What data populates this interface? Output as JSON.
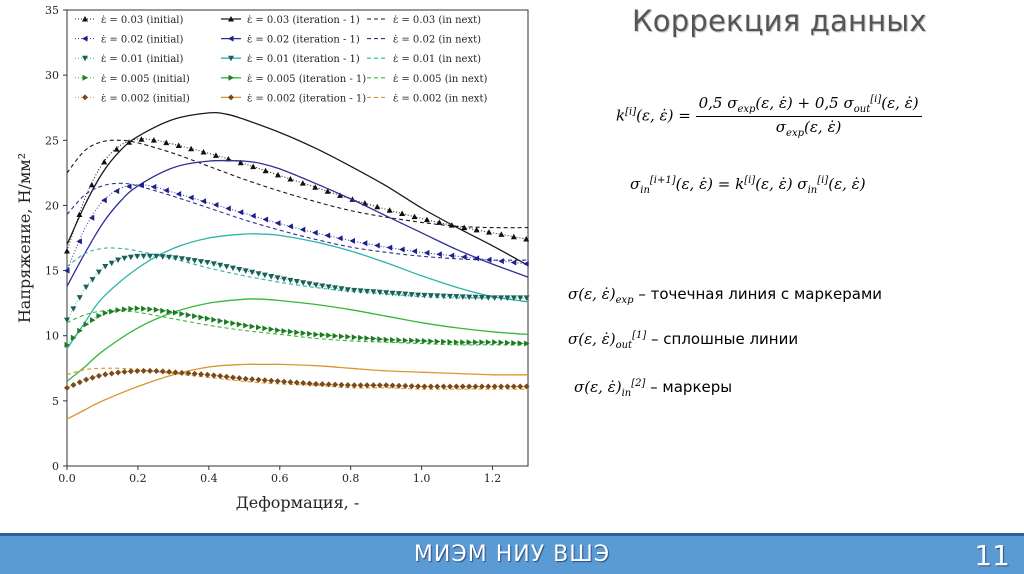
{
  "slide": {
    "title": "Коррекция данных",
    "footer_text": "МИЭМ НИУ ВШЭ",
    "page_number": "11"
  },
  "formulas": {
    "k_lhs": "k",
    "k_sup": "[i]",
    "k_args": "(ε, ε̇) =",
    "k_num": "0,5 σ",
    "k_num_sub1": "exp",
    "k_num_mid": "(ε, ε̇) + 0,5 σ",
    "k_num_sub2": "out",
    "k_num_sup2": "[i]",
    "k_num_end": "(ε, ε̇)",
    "k_den": "σ",
    "k_den_sub": "exp",
    "k_den_end": "(ε, ε̇)",
    "s_lhs": "σ",
    "s_lhs_sub": "in",
    "s_lhs_sup": "[i+1]",
    "s_mid": "(ε, ε̇) = k",
    "s_mid_sup": "[i]",
    "s_mid2": "(ε, ε̇) σ",
    "s_rhs_sub": "in",
    "s_rhs_sup": "[i]",
    "s_end": "(ε, ε̇)"
  },
  "legend_notes": [
    {
      "sym": "σ(ε, ε̇)",
      "sub": "exp",
      "sup": "",
      "text": " – точечная линия с маркерами"
    },
    {
      "sym": "σ(ε, ε̇)",
      "sub": "out",
      "sup": "[1]",
      "text": " – сплошные линии"
    },
    {
      "sym": "σ(ε, ε̇)",
      "sub": "in",
      "sup": "[2]",
      "text": "  – маркеры"
    }
  ],
  "chart_data": {
    "type": "line",
    "xlabel": "Деформация, -",
    "ylabel": "Напряжение, Н/мм²",
    "xlim": [
      0.0,
      1.3
    ],
    "ylim": [
      0,
      35
    ],
    "xticks": [
      "0.0",
      "0.2",
      "0.4",
      "0.6",
      "0.8",
      "1.0",
      "1.2"
    ],
    "yticks": [
      "0",
      "5",
      "10",
      "15",
      "20",
      "25",
      "30",
      "35"
    ],
    "grid": false,
    "legend_position": "top",
    "colors": {
      "0.03": "#1a1a1a",
      "0.02": "#2f2f9a",
      "0.01": "#2ab5a8",
      "0.005": "#35b83a",
      "0.002": "#d9962e"
    },
    "marker_colors": {
      "0.03": "#111111",
      "0.02": "#1f1f8a",
      "0.01": "#1d5e56",
      "0.005": "#1f7a24",
      "0.002": "#7a4a1a"
    },
    "legend": [
      [
        "ε̇ = 0.03 (initial)",
        "ε̇ = 0.03 (iteration - 1)",
        "ε̇ = 0.03 (in next)"
      ],
      [
        "ε̇ = 0.02 (initial)",
        "ε̇ = 0.02 (iteration - 1)",
        "ε̇ = 0.02 (in next)"
      ],
      [
        "ε̇ = 0.01 (initial)",
        "ε̇ = 0.01 (iteration - 1)",
        "ε̇ = 0.01 (in next)"
      ],
      [
        "ε̇ = 0.005 (initial)",
        "ε̇ = 0.005 (iteration - 1)",
        "ε̇ = 0.005 (in next)"
      ],
      [
        "ε̇ = 0.002 (initial)",
        "ε̇ = 0.002 (iteration - 1)",
        "ε̇ = 0.002 (in next)"
      ]
    ],
    "series": [
      {
        "rate": "0.03",
        "kind": "solid",
        "x": [
          0.0,
          0.05,
          0.1,
          0.15,
          0.2,
          0.3,
          0.4,
          0.45,
          0.5,
          0.6,
          0.7,
          0.8,
          0.9,
          1.0,
          1.1,
          1.2,
          1.3
        ],
        "y": [
          17.0,
          20.0,
          22.5,
          24.2,
          25.3,
          26.6,
          27.1,
          27.0,
          26.6,
          25.6,
          24.4,
          23.0,
          21.5,
          19.8,
          18.3,
          16.9,
          15.4
        ]
      },
      {
        "rate": "0.03",
        "kind": "dashed",
        "x": [
          0.0,
          0.05,
          0.1,
          0.15,
          0.2,
          0.3,
          0.4,
          0.5,
          0.6,
          0.7,
          0.8,
          0.9,
          1.0,
          1.1,
          1.2,
          1.3
        ],
        "y": [
          22.5,
          24.2,
          24.9,
          25.0,
          24.8,
          24.0,
          23.0,
          22.0,
          21.1,
          20.3,
          19.6,
          19.1,
          18.7,
          18.4,
          18.3,
          18.3
        ]
      },
      {
        "rate": "0.03",
        "kind": "markers",
        "x": [
          0.0,
          0.05,
          0.1,
          0.15,
          0.2,
          0.25,
          0.3,
          0.4,
          0.5,
          0.6,
          0.7,
          0.8,
          0.9,
          1.0,
          1.1,
          1.2,
          1.3
        ],
        "y": [
          16.5,
          20.5,
          23.2,
          24.6,
          25.1,
          25.0,
          24.7,
          24.0,
          23.2,
          22.3,
          21.4,
          20.5,
          19.7,
          19.0,
          18.4,
          17.9,
          17.4
        ]
      },
      {
        "rate": "0.02",
        "kind": "solid",
        "x": [
          0.0,
          0.05,
          0.1,
          0.15,
          0.2,
          0.3,
          0.4,
          0.5,
          0.55,
          0.6,
          0.7,
          0.8,
          0.9,
          1.0,
          1.1,
          1.2,
          1.3
        ],
        "y": [
          13.8,
          16.3,
          18.6,
          20.3,
          21.5,
          22.9,
          23.4,
          23.4,
          23.2,
          22.8,
          21.7,
          20.5,
          19.2,
          17.9,
          16.6,
          15.5,
          14.5
        ]
      },
      {
        "rate": "0.02",
        "kind": "dashed",
        "x": [
          0.0,
          0.05,
          0.1,
          0.15,
          0.2,
          0.3,
          0.4,
          0.5,
          0.6,
          0.7,
          0.8,
          0.9,
          1.0,
          1.1,
          1.2,
          1.3
        ],
        "y": [
          19.3,
          20.8,
          21.5,
          21.7,
          21.5,
          20.7,
          19.8,
          18.9,
          18.1,
          17.4,
          16.8,
          16.4,
          16.1,
          15.9,
          15.8,
          15.8
        ]
      },
      {
        "rate": "0.02",
        "kind": "markers",
        "x": [
          0.0,
          0.05,
          0.1,
          0.15,
          0.2,
          0.25,
          0.3,
          0.4,
          0.5,
          0.6,
          0.7,
          0.8,
          0.9,
          1.0,
          1.1,
          1.2,
          1.3
        ],
        "y": [
          15.0,
          18.2,
          20.3,
          21.3,
          21.6,
          21.4,
          21.0,
          20.2,
          19.4,
          18.6,
          17.9,
          17.3,
          16.8,
          16.4,
          16.1,
          15.8,
          15.5
        ]
      },
      {
        "rate": "0.01",
        "kind": "solid",
        "x": [
          0.0,
          0.05,
          0.1,
          0.2,
          0.3,
          0.4,
          0.5,
          0.55,
          0.6,
          0.7,
          0.8,
          0.9,
          1.0,
          1.1,
          1.2,
          1.3
        ],
        "y": [
          9.0,
          11.0,
          12.9,
          15.2,
          16.7,
          17.5,
          17.8,
          17.8,
          17.7,
          17.2,
          16.5,
          15.6,
          14.6,
          13.7,
          13.0,
          12.6
        ]
      },
      {
        "rate": "0.01",
        "kind": "dashed",
        "x": [
          0.0,
          0.05,
          0.1,
          0.15,
          0.2,
          0.3,
          0.4,
          0.5,
          0.6,
          0.7,
          0.8,
          0.9,
          1.0,
          1.1,
          1.2,
          1.3
        ],
        "y": [
          15.3,
          16.3,
          16.7,
          16.7,
          16.5,
          15.9,
          15.2,
          14.6,
          14.1,
          13.7,
          13.4,
          13.2,
          13.0,
          12.9,
          12.9,
          12.9
        ]
      },
      {
        "rate": "0.01",
        "kind": "markers",
        "x": [
          0.0,
          0.05,
          0.1,
          0.15,
          0.2,
          0.25,
          0.3,
          0.4,
          0.5,
          0.6,
          0.7,
          0.8,
          0.9,
          1.0,
          1.1,
          1.2,
          1.3
        ],
        "y": [
          11.2,
          13.6,
          15.2,
          15.9,
          16.1,
          16.1,
          16.0,
          15.6,
          15.0,
          14.4,
          13.9,
          13.5,
          13.3,
          13.1,
          13.0,
          12.9,
          12.9
        ]
      },
      {
        "rate": "0.005",
        "kind": "solid",
        "x": [
          0.0,
          0.05,
          0.1,
          0.2,
          0.3,
          0.4,
          0.5,
          0.55,
          0.6,
          0.7,
          0.8,
          0.9,
          1.0,
          1.1,
          1.2,
          1.3
        ],
        "y": [
          6.5,
          7.6,
          8.8,
          10.6,
          11.8,
          12.5,
          12.8,
          12.8,
          12.7,
          12.4,
          12.0,
          11.5,
          11.0,
          10.6,
          10.3,
          10.1
        ]
      },
      {
        "rate": "0.005",
        "kind": "dashed",
        "x": [
          0.0,
          0.05,
          0.1,
          0.15,
          0.2,
          0.3,
          0.4,
          0.5,
          0.6,
          0.7,
          0.8,
          0.9,
          1.0,
          1.1,
          1.2,
          1.3
        ],
        "y": [
          11.0,
          11.6,
          11.9,
          11.9,
          11.8,
          11.3,
          10.8,
          10.4,
          10.1,
          9.8,
          9.6,
          9.5,
          9.4,
          9.3,
          9.3,
          9.3
        ]
      },
      {
        "rate": "0.005",
        "kind": "markers",
        "x": [
          0.0,
          0.05,
          0.1,
          0.15,
          0.2,
          0.25,
          0.3,
          0.4,
          0.5,
          0.6,
          0.7,
          0.8,
          0.9,
          1.0,
          1.1,
          1.2,
          1.3
        ],
        "y": [
          9.3,
          10.8,
          11.7,
          12.0,
          12.1,
          12.0,
          11.8,
          11.3,
          10.8,
          10.4,
          10.1,
          9.9,
          9.7,
          9.6,
          9.5,
          9.5,
          9.4
        ]
      },
      {
        "rate": "0.002",
        "kind": "solid",
        "x": [
          0.0,
          0.05,
          0.1,
          0.2,
          0.3,
          0.4,
          0.5,
          0.55,
          0.6,
          0.7,
          0.8,
          0.9,
          1.0,
          1.1,
          1.2,
          1.3
        ],
        "y": [
          3.6,
          4.3,
          5.0,
          6.1,
          7.0,
          7.6,
          7.8,
          7.8,
          7.8,
          7.7,
          7.5,
          7.3,
          7.2,
          7.1,
          7.0,
          7.0
        ]
      },
      {
        "rate": "0.002",
        "kind": "dashed",
        "x": [
          0.0,
          0.05,
          0.1,
          0.15,
          0.2,
          0.3,
          0.4,
          0.5,
          0.6,
          0.7,
          0.8,
          0.9,
          1.0,
          1.1,
          1.2,
          1.3
        ],
        "y": [
          7.0,
          7.4,
          7.5,
          7.5,
          7.4,
          7.1,
          6.8,
          6.5,
          6.3,
          6.2,
          6.0,
          6.0,
          5.9,
          5.9,
          5.9,
          5.9
        ]
      },
      {
        "rate": "0.002",
        "kind": "markers",
        "x": [
          0.0,
          0.05,
          0.1,
          0.15,
          0.2,
          0.25,
          0.3,
          0.4,
          0.5,
          0.6,
          0.7,
          0.8,
          0.9,
          1.0,
          1.1,
          1.2,
          1.3
        ],
        "y": [
          6.0,
          6.6,
          7.0,
          7.2,
          7.3,
          7.3,
          7.2,
          7.0,
          6.7,
          6.5,
          6.3,
          6.2,
          6.2,
          6.1,
          6.1,
          6.1,
          6.1
        ]
      }
    ]
  }
}
